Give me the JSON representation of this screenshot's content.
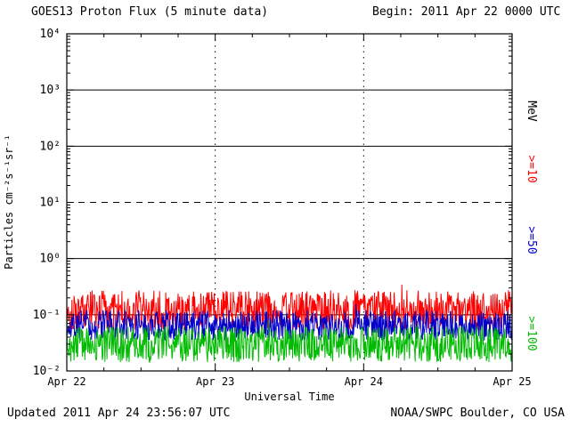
{
  "header": {
    "title": "GOES13 Proton Flux (5 minute data)",
    "begin_label": "Begin: 2011 Apr 22 0000 UTC"
  },
  "footer": {
    "updated": "Updated 2011 Apr 24 23:56:07 UTC",
    "source": "NOAA/SWPC Boulder, CO USA"
  },
  "chart_data": {
    "type": "line",
    "title": "GOES13 Proton Flux (5 minute data)",
    "xlabel": "Universal Time",
    "ylabel": "Particles cm⁻²s⁻¹sr⁻¹",
    "y_scale": "log",
    "ylim": [
      0.01,
      10000
    ],
    "y_ticks": [
      "10⁴",
      "10³",
      "10²",
      "10¹",
      "10⁰",
      "10⁻¹",
      "10⁻²"
    ],
    "y_tick_exponents": [
      4,
      3,
      2,
      1,
      0,
      -1,
      -2
    ],
    "x_ticks": [
      "Apr 22",
      "Apr 23",
      "Apr 24",
      "Apr 25"
    ],
    "x_range_days": 3,
    "samples_per_day": 288,
    "right_axis_unit": "MeV",
    "grid": {
      "solid_gridline_exponents": [
        3,
        2,
        0,
        -1
      ],
      "dashed_gridline_exponents": [
        1
      ],
      "vertical_dotted_days": [
        1,
        2
      ]
    },
    "series": [
      {
        "name": ">=10",
        "color": "#ff0000",
        "mean_flux": 0.12,
        "log_spread": 0.36,
        "spike_chance": 0.04,
        "seed": 101
      },
      {
        "name": ">=50",
        "color": "#0000cc",
        "mean_flux": 0.065,
        "log_spread": 0.27,
        "spike_chance": 0.02,
        "seed": 202
      },
      {
        "name": ">=100",
        "color": "#00bb00",
        "mean_flux": 0.03,
        "log_spread": 0.32,
        "spike_chance": 0.02,
        "seed": 303
      }
    ]
  }
}
